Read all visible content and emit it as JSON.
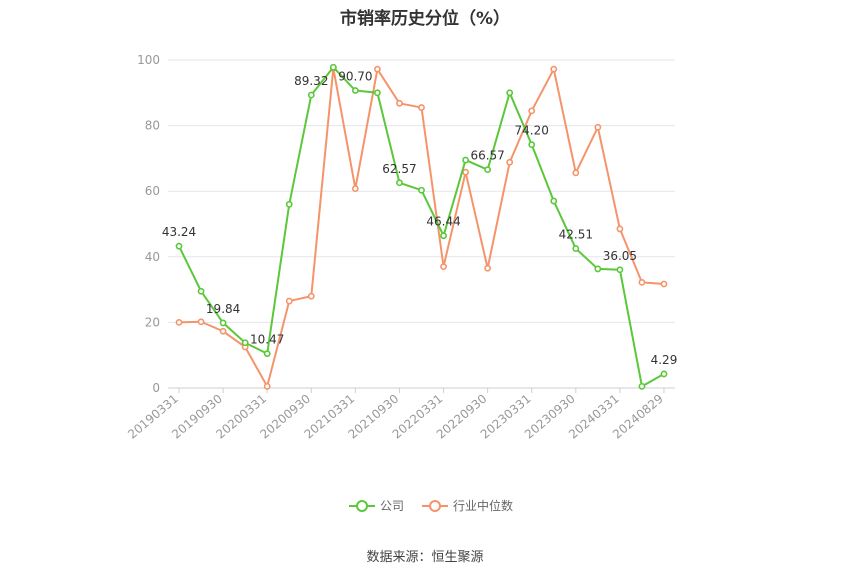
{
  "chart_data": {
    "type": "line",
    "title": "市销率历史分位（%）",
    "x": [
      "20190331",
      "20190630",
      "20190930",
      "20191231",
      "20200331",
      "20200630",
      "20200930",
      "20201231",
      "20210331",
      "20210630",
      "20210930",
      "20211231",
      "20220331",
      "20220630",
      "20220930",
      "20221231",
      "20230331",
      "20230630",
      "20230930",
      "20231231",
      "20240331",
      "20240630",
      "20240829"
    ],
    "tick_labels": [
      "20190331",
      "20190930",
      "20200331",
      "20200930",
      "20210331",
      "20210930",
      "20220331",
      "20220930",
      "20230331",
      "20230930",
      "20240331",
      "20240829"
    ],
    "y_ticks": [
      0,
      20,
      40,
      60,
      80,
      100
    ],
    "ylim": [
      0,
      100
    ],
    "grid": true,
    "legend_position": "bottom-center",
    "series": [
      {
        "name": "公司",
        "color": "#5ac83a",
        "values": [
          43.24,
          29.5,
          19.84,
          13.8,
          10.47,
          56.0,
          89.32,
          97.8,
          90.7,
          90.0,
          62.57,
          60.3,
          46.44,
          69.5,
          66.57,
          90.0,
          74.2,
          57.0,
          42.51,
          36.3,
          36.05,
          0.5,
          4.29
        ],
        "labels": {
          "0": "43.24",
          "2": "19.84",
          "4": "10.47",
          "6": "89.32",
          "8": "90.70",
          "10": "62.57",
          "12": "46.44",
          "14": "66.57",
          "16": "74.20",
          "18": "42.51",
          "20": "36.05",
          "22": "4.29"
        }
      },
      {
        "name": "行业中位数",
        "color": "#f5946a",
        "values": [
          20.0,
          20.2,
          17.3,
          12.5,
          0.5,
          26.5,
          28.0,
          97.5,
          60.8,
          97.2,
          86.8,
          85.5,
          37.0,
          65.8,
          36.5,
          68.8,
          84.5,
          97.2,
          65.6,
          79.5,
          48.5,
          32.2,
          31.7
        ]
      }
    ]
  },
  "source": "数据来源：恒生聚源"
}
